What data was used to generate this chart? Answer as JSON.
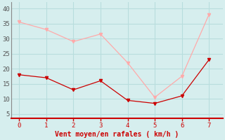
{
  "x": [
    0,
    1,
    2,
    3,
    4,
    5,
    6,
    7
  ],
  "y_moyen": [
    18,
    17,
    13,
    16,
    9.5,
    8.5,
    11,
    23
  ],
  "y_rafales": [
    35.5,
    33,
    29,
    31.5,
    22,
    10.5,
    17.5,
    38
  ],
  "color_moyen": "#cc0000",
  "color_rafales": "#ffaaaa",
  "bg_color": "#d6eeee",
  "grid_color": "#b8dddd",
  "xlabel": "Vent moyen/en rafales ( km/h )",
  "xlabel_color": "#cc0000",
  "yticks": [
    5,
    10,
    15,
    20,
    25,
    30,
    35,
    40
  ],
  "xticks": [
    0,
    1,
    2,
    3,
    4,
    5,
    6,
    7
  ],
  "ylim": [
    3.5,
    42
  ],
  "xlim": [
    -0.3,
    7.5
  ]
}
